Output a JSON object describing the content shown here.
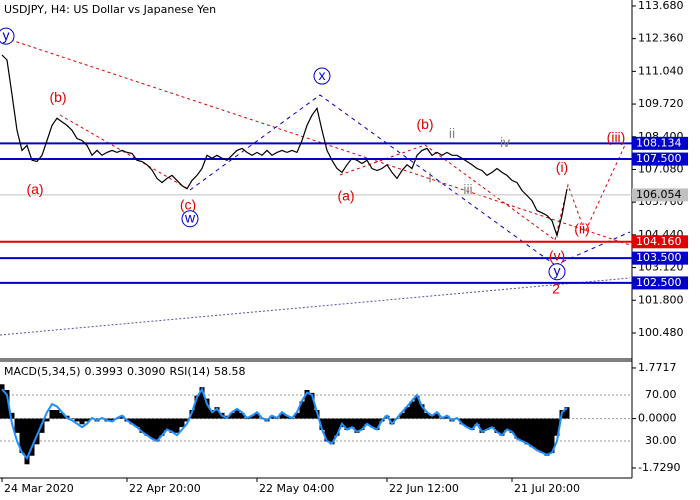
{
  "chart_data": [
    {
      "type": "line",
      "title": "USDJPY, H4:  US Dollar vs Japanese Yen",
      "color": "#000000",
      "values": [
        111.7,
        111.5,
        110.1,
        108.66,
        107.85,
        108.05,
        107.45,
        107.4,
        107.65,
        108.25,
        108.86,
        109.15,
        109.0,
        108.86,
        108.66,
        108.33,
        108.25,
        108.05,
        107.65,
        107.85,
        107.65,
        107.77,
        107.85,
        107.77,
        107.85,
        107.77,
        107.73,
        107.45,
        107.4,
        107.27,
        107.06,
        106.72,
        106.55,
        106.72,
        106.84,
        106.64,
        106.43,
        106.3,
        106.64,
        106.84,
        107.12,
        107.65,
        107.53,
        107.65,
        107.53,
        107.45,
        107.65,
        107.85,
        107.93,
        107.77,
        107.65,
        107.77,
        107.65,
        107.85,
        107.65,
        107.77,
        107.85,
        107.77,
        107.85,
        107.77,
        108.25,
        108.86,
        109.27,
        109.55,
        108.66,
        107.85,
        107.45,
        107.12,
        106.96,
        107.27,
        107.53,
        107.45,
        107.32,
        107.45,
        107.12,
        107.04,
        107.12,
        107.27,
        106.96,
        106.72,
        107.04,
        107.27,
        107.12,
        107.65,
        107.85,
        107.93,
        107.65,
        107.77,
        107.65,
        107.77,
        107.65,
        107.65,
        107.53,
        107.4,
        107.27,
        107.12,
        107.04,
        106.84,
        106.96,
        107.12,
        106.96,
        106.84,
        106.64,
        106.55,
        106.23,
        106.03,
        105.82,
        105.42,
        105.33,
        105.22,
        105.01,
        104.41,
        105.22,
        106.3
      ],
      "xlim": [
        0,
        126
      ],
      "xticks": [
        {
          "value": 0,
          "label": "24 Mar 2020"
        },
        {
          "value": 25,
          "label": "22 Apr 20:00"
        },
        {
          "value": 51,
          "label": "22 May 04:00"
        },
        {
          "value": 77,
          "label": "22 Jun 12:00"
        },
        {
          "value": 102,
          "label": "21 Jul 20:00"
        }
      ],
      "ylim": [
        99.47,
        113.92
      ],
      "yticks": [
        {
          "value": 113.68,
          "label": "113.680"
        },
        {
          "value": 112.36,
          "label": "112.360"
        },
        {
          "value": 111.04,
          "label": "111.040"
        },
        {
          "value": 109.72,
          "label": "109.720"
        },
        {
          "value": 108.4,
          "label": "108.400"
        },
        {
          "value": 107.08,
          "label": "107.080"
        },
        {
          "value": 105.76,
          "label": "105.760"
        },
        {
          "value": 104.44,
          "label": "104.440"
        },
        {
          "value": 103.12,
          "label": "103.120"
        },
        {
          "value": 101.8,
          "label": "101.800"
        },
        {
          "value": 100.48,
          "label": "100.480"
        }
      ],
      "levels": [
        {
          "value": 108.134,
          "color": "#0000c8",
          "text_color": "#ffffff"
        },
        {
          "value": 107.5,
          "label": "107.500",
          "color": "#0000c8",
          "text_color": "#ffffff"
        },
        {
          "value": 106.054,
          "color": "#c0c0c0",
          "text_color": "#000000"
        },
        {
          "value": 104.16,
          "label": "104.160",
          "color": "#e00000",
          "text_color": "#ffffff"
        },
        {
          "value": 103.5,
          "label": "103.500",
          "color": "#0000c8",
          "text_color": "#ffffff"
        },
        {
          "value": 102.5,
          "label": "102.500",
          "color": "#0000c8",
          "text_color": "#ffffff"
        }
      ],
      "annotations": [
        {
          "text": "y",
          "x": 0.8,
          "y": 112.46,
          "color": "#0000c8",
          "circled": true
        },
        {
          "text": "(a)",
          "x": 6.6,
          "y": 106.23,
          "color": "#e00000"
        },
        {
          "text": "(b)",
          "x": 11.2,
          "y": 109.95,
          "color": "#e00000"
        },
        {
          "text": "(c)",
          "x": 37.2,
          "y": 105.62,
          "color": "#e00000"
        },
        {
          "text": "w",
          "x": 37.6,
          "y": 105.09,
          "color": "#0000c8",
          "circled": true
        },
        {
          "text": "x",
          "x": 64,
          "y": 110.85,
          "color": "#0000c8",
          "circled": true
        },
        {
          "text": "(a)",
          "x": 68.8,
          "y": 105.98,
          "color": "#e00000"
        },
        {
          "text": "(b)",
          "x": 84.6,
          "y": 108.86,
          "color": "#e00000"
        },
        {
          "text": "ii",
          "x": 90,
          "y": 108.5,
          "color": "#808080"
        },
        {
          "text": "i",
          "x": 85.6,
          "y": 106.71,
          "color": "#808080"
        },
        {
          "text": "iii",
          "x": 93.2,
          "y": 106.23,
          "color": "#808080"
        },
        {
          "text": "iv",
          "x": 100.6,
          "y": 108.13,
          "color": "#808080"
        },
        {
          "text": "(i)",
          "x": 112,
          "y": 107.12,
          "color": "#e00000"
        },
        {
          "text": "(ii)",
          "x": 116,
          "y": 104.65,
          "color": "#e00000"
        },
        {
          "text": "(iii)",
          "x": 122.8,
          "y": 108.33,
          "color": "#e00000"
        },
        {
          "text": "(v)",
          "x": 111,
          "y": 103.56,
          "color": "#e00000"
        },
        {
          "text": "y",
          "x": 111,
          "y": 102.95,
          "color": "#0000c8",
          "circled": true
        },
        {
          "text": "2",
          "x": 110.8,
          "y": 102.22,
          "color": "#e00000"
        }
      ]
    },
    {
      "type": "bar",
      "header": [
        "MACD(5,34,5)",
        0.3993,
        {
          "value": 0.309,
          "label": "0.3090"
        },
        "RSI(14)",
        58.58
      ],
      "xlim": [
        0,
        126
      ],
      "ylim": [
        -2.08,
        1.98
      ],
      "yticks": [
        1.7717,
        {
          "value": 0,
          "label": "0.0000"
        },
        {
          "value": -1.729,
          "label": "-1.7290"
        }
      ],
      "y2lim": [
        -2.2,
        98.7
      ],
      "y2ticks": [
        {
          "value": 70,
          "label": "70.00"
        },
        {
          "value": 30,
          "label": "30.00"
        }
      ],
      "series": [
        {
          "type": "bar",
          "color": "#000000",
          "values": [
            1.2,
            1.0,
            0.2,
            -0.5,
            -1.2,
            -1.6,
            -1.3,
            -0.9,
            -0.5,
            -0.1,
            0.3,
            0.3,
            0.2,
            0.1,
            0.0,
            -0.1,
            -0.2,
            -0.1,
            0.0,
            -0.1,
            0.0,
            -0.1,
            -0.1,
            0.0,
            0.1,
            -0.1,
            -0.2,
            -0.3,
            -0.5,
            -0.6,
            -0.7,
            -0.8,
            -0.6,
            -0.4,
            -0.5,
            -0.5,
            -0.3,
            -0.1,
            0.3,
            0.8,
            1.1,
            0.7,
            0.3,
            0.4,
            0.2,
            0.1,
            0.2,
            0.3,
            0.2,
            0.0,
            0.1,
            0.2,
            0.0,
            -0.1,
            0.1,
            0.0,
            0.2,
            0.1,
            0.0,
            0.2,
            0.6,
            1.0,
            0.9,
            0.3,
            -0.4,
            -0.8,
            -0.9,
            -0.6,
            -0.3,
            -0.4,
            -0.3,
            -0.5,
            -0.4,
            -0.2,
            -0.3,
            -0.4,
            -0.1,
            0.1,
            -0.2,
            0.0,
            0.2,
            0.4,
            0.6,
            0.8,
            0.5,
            0.2,
            0.1,
            0.2,
            0.0,
            0.1,
            -0.1,
            0.0,
            -0.2,
            -0.3,
            -0.4,
            -0.2,
            -0.5,
            -0.4,
            -0.3,
            -0.5,
            -0.6,
            -0.4,
            -0.5,
            -0.7,
            -0.8,
            -0.9,
            -1.0,
            -1.1,
            -1.2,
            -1.3,
            -1.2,
            -0.6,
            0.3,
            0.3993
          ]
        },
        {
          "type": "line",
          "axis": "y2",
          "color": "#1e90ff",
          "values": [
            75,
            70,
            45,
            30,
            20,
            15,
            25,
            35,
            45,
            55,
            62,
            60,
            55,
            50,
            48,
            45,
            42,
            45,
            50,
            48,
            50,
            48,
            47,
            50,
            52,
            48,
            45,
            42,
            38,
            35,
            32,
            30,
            35,
            40,
            38,
            35,
            40,
            45,
            55,
            68,
            75,
            62,
            55,
            58,
            52,
            50,
            55,
            58,
            55,
            50,
            52,
            55,
            50,
            48,
            52,
            50,
            55,
            52,
            50,
            55,
            65,
            72,
            70,
            55,
            40,
            30,
            28,
            35,
            45,
            40,
            42,
            38,
            40,
            45,
            42,
            40,
            48,
            52,
            45,
            50,
            55,
            60,
            65,
            70,
            60,
            55,
            52,
            55,
            50,
            52,
            48,
            50,
            45,
            42,
            40,
            45,
            38,
            40,
            42,
            38,
            35,
            40,
            38,
            32,
            30,
            28,
            25,
            22,
            20,
            18,
            20,
            30,
            55,
            58.58
          ]
        }
      ]
    }
  ]
}
